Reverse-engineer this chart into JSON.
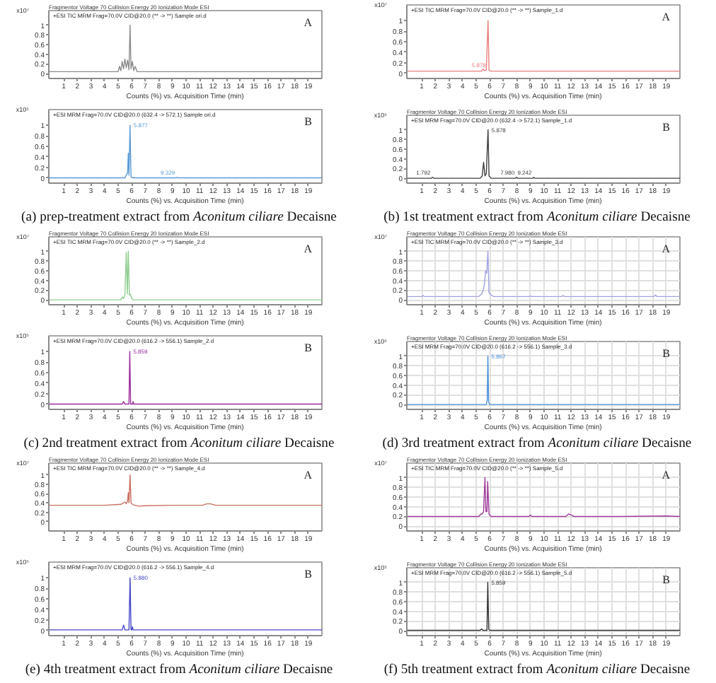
{
  "chart_data": [
    {
      "type": "line",
      "title": "+ESI TIC MRM Frag=70.0V CID@20.0 (** -> **) Sample ori.d",
      "subtitle": "Fragmentor Voltage 70 Collision Energy 20 Ionization Mode ESI",
      "xlabel": "Counts (%) vs. Acquisition Time (min)",
      "ylabel": "x10⁷",
      "color": "#8c8c8c",
      "x": [
        -0.1,
        5.0,
        5.1,
        5.2,
        5.3,
        5.4,
        5.5,
        5.6,
        5.7,
        5.8,
        5.88,
        5.95,
        6.05,
        6.15,
        6.25,
        6.4,
        20
      ],
      "values": [
        0.04,
        0.04,
        0.15,
        0.06,
        0.25,
        0.1,
        0.3,
        0.12,
        0.28,
        0.08,
        1.0,
        0.1,
        0.25,
        0.06,
        0.15,
        0.04,
        0.04
      ],
      "xlim": [
        -0.1,
        20
      ],
      "ylim": [
        -0.1,
        1.3
      ],
      "xticks": [
        1,
        2,
        3,
        4,
        5,
        6,
        7,
        8,
        9,
        10,
        11,
        12,
        13,
        14,
        15,
        16,
        17,
        18,
        19
      ],
      "yticks": [
        0,
        0.2,
        0.4,
        0.6,
        0.8,
        1
      ],
      "annotations": [
        "A"
      ]
    },
    {
      "type": "line",
      "title": "+ESI MRM Frag=70.0V CID@20.0 (632.4 -> 572.1) Sample ori.d",
      "xlabel": "Counts (%) vs. Acquisition Time (min)",
      "ylabel": "x10⁵",
      "color": "#5b9bd5",
      "x": [
        -0.1,
        5.5,
        5.6,
        5.7,
        5.75,
        5.8,
        5.877,
        5.95,
        6.05,
        9.25,
        9.329,
        9.4,
        20
      ],
      "values": [
        0,
        0,
        0.05,
        0.1,
        0.47,
        0.05,
        1.0,
        0.02,
        0,
        0,
        0.01,
        0,
        0
      ],
      "xlim": [
        -0.1,
        20
      ],
      "ylim": [
        -0.1,
        1.3
      ],
      "xticks": [
        1,
        2,
        3,
        4,
        5,
        6,
        7,
        8,
        9,
        10,
        11,
        12,
        13,
        14,
        15,
        16,
        17,
        18,
        19
      ],
      "yticks": [
        0,
        0.2,
        0.4,
        0.6,
        0.8,
        1
      ],
      "annotations": [
        "B",
        {
          "text": "5.877",
          "x": 5.877,
          "y": 1.0
        },
        {
          "text": "9.329",
          "x": 9.329,
          "y": 0.01
        },
        "(a) prep-treatment extract from",
        "Aconitum ciliare",
        "Decaisne"
      ]
    },
    {
      "type": "line",
      "title": "+ESI TIC MRM Frag=70.0V CID@20.0 (** -> **) Sample_1.d",
      "xlabel": "Counts (%) vs. Acquisition Time (min)",
      "ylabel": "x10⁷",
      "color": "#e88080",
      "x": [
        -0.1,
        5.4,
        5.5,
        5.6,
        5.75,
        5.878,
        5.95,
        6.1,
        20
      ],
      "values": [
        0.04,
        0.04,
        0.08,
        0.05,
        0.06,
        1.0,
        0.06,
        0.04,
        0.04
      ],
      "xlim": [
        -0.1,
        20
      ],
      "ylim": [
        -0.1,
        1.3
      ],
      "xticks": [
        1,
        2,
        3,
        4,
        5,
        6,
        7,
        8,
        9,
        10,
        11,
        12,
        13,
        14,
        15,
        16,
        17,
        18,
        19
      ],
      "yticks": [
        0,
        0.2,
        0.4,
        0.6,
        0.8,
        1
      ],
      "annotations": [
        "A",
        {
          "text": "5.878",
          "x": 5.878,
          "y": 0.06
        }
      ]
    },
    {
      "type": "line",
      "title": "+ESI MRM Frag=70.0V CID@20.0 (632.4 -> 572.1) Sample_1.d",
      "subtitle": "Fragmentor Voltage 70 Collision Energy 20 Ionization Mode ESI",
      "xlabel": "Counts (%) vs. Acquisition Time (min)",
      "ylabel": "x10⁵",
      "color": "#404040",
      "x": [
        -0.1,
        1.7,
        1.792,
        1.9,
        5.3,
        5.45,
        5.55,
        5.65,
        5.75,
        5.878,
        5.95,
        6.1,
        7.9,
        7.98,
        8.06,
        9.16,
        9.242,
        9.32,
        20
      ],
      "values": [
        0,
        0,
        0.02,
        0,
        0,
        0.05,
        0.33,
        0.05,
        0.1,
        1.0,
        0.05,
        0,
        0,
        0.02,
        0,
        0,
        0.02,
        0,
        0
      ],
      "xlim": [
        -0.1,
        20
      ],
      "ylim": [
        -0.1,
        1.3
      ],
      "xticks": [
        1,
        2,
        3,
        4,
        5,
        6,
        7,
        8,
        9,
        10,
        11,
        12,
        13,
        14,
        15,
        16,
        17,
        18,
        19
      ],
      "yticks": [
        0,
        0.2,
        0.4,
        0.6,
        0.8,
        1
      ],
      "annotations": [
        "B",
        {
          "text": "5.878",
          "x": 5.878,
          "y": 1.0
        },
        {
          "text": "1.792",
          "x": 1.792,
          "y": 0.02
        },
        {
          "text": "7.980",
          "x": 7.98,
          "y": 0.02
        },
        {
          "text": "9.242",
          "x": 9.242,
          "y": 0.02
        },
        "(b) 1st treatment extract from",
        "Aconitum ciliare",
        "Decaisne"
      ]
    },
    {
      "type": "line",
      "title": "+ESI TIC MRM Frag=70.0V CID@20.0 (** -> **) Sample_2.d",
      "subtitle": "Fragmentor Voltage 70 Collision Energy 20 Ionization Mode ESI",
      "xlabel": "Counts (%) vs. Acquisition Time (min)",
      "ylabel": "x10⁷",
      "color": "#8fce8f",
      "x": [
        -0.1,
        5.2,
        5.3,
        5.4,
        5.5,
        5.6,
        5.68,
        5.75,
        5.83,
        5.9,
        6.0,
        6.1,
        20
      ],
      "values": [
        0,
        0,
        0.06,
        0.03,
        0.1,
        0.98,
        0.12,
        1.0,
        0.1,
        0.12,
        0.03,
        0,
        0
      ],
      "xlim": [
        -0.1,
        20
      ],
      "ylim": [
        -0.1,
        1.3
      ],
      "xticks": [
        1,
        2,
        3,
        4,
        5,
        6,
        7,
        8,
        9,
        10,
        11,
        12,
        13,
        14,
        15,
        16,
        17,
        18,
        19
      ],
      "yticks": [
        0,
        0.2,
        0.4,
        0.6,
        0.8,
        1
      ],
      "annotations": [
        "A"
      ]
    },
    {
      "type": "line",
      "title": "+ESI MRM Frag=70.0V CID@20.0 (616.2 -> 556.1) Sample_2.d",
      "xlabel": "Counts (%) vs. Acquisition Time (min)",
      "ylabel": "x10⁵",
      "color": "#9b2d9b",
      "x": [
        -0.1,
        5.3,
        5.4,
        5.5,
        5.8,
        5.859,
        5.92,
        6.05,
        6.1,
        6.15,
        20
      ],
      "values": [
        0,
        0,
        0.05,
        0,
        0,
        1.0,
        0,
        0,
        0.05,
        0,
        0
      ],
      "xlim": [
        -0.1,
        20
      ],
      "ylim": [
        -0.1,
        1.3
      ],
      "xticks": [
        1,
        2,
        3,
        4,
        5,
        6,
        7,
        8,
        9,
        10,
        11,
        12,
        13,
        14,
        15,
        16,
        17,
        18,
        19
      ],
      "yticks": [
        0,
        0.2,
        0.4,
        0.6,
        0.8,
        1
      ],
      "annotations": [
        "B",
        {
          "text": "5.859",
          "x": 5.859,
          "y": 1.0
        },
        "(c) 2nd treatment extract from",
        "Aconitum ciliare",
        "Decaisne"
      ]
    },
    {
      "type": "line",
      "title": "+ESI TIC MRM Frag=70.0V CID@20.0 (** -> **) Sample_3.d",
      "subtitle": "Fragmentor Voltage 70 Collision Energy 20 Ionization Mode ESI",
      "xlabel": "Counts (%) vs. Acquisition Time (min)",
      "ylabel": "x10⁷",
      "color": "#a0a0e0",
      "grid": true,
      "x": [
        -0.1,
        1.0,
        1.1,
        1.2,
        5.2,
        5.4,
        5.5,
        5.6,
        5.7,
        5.78,
        5.87,
        5.95,
        6.1,
        6.3,
        8.9,
        9.0,
        9.1,
        11.3,
        11.4,
        11.5,
        18.1,
        18.2,
        18.3,
        20
      ],
      "values": [
        0.07,
        0.07,
        0.09,
        0.07,
        0.07,
        0.12,
        0.18,
        0.3,
        0.6,
        0.55,
        1.0,
        0.15,
        0.1,
        0.07,
        0.07,
        0.08,
        0.07,
        0.07,
        0.09,
        0.07,
        0.07,
        0.1,
        0.07,
        0.07
      ],
      "xlim": [
        -0.1,
        20
      ],
      "ylim": [
        -0.1,
        1.3
      ],
      "xticks": [
        1,
        2,
        3,
        4,
        5,
        6,
        7,
        8,
        9,
        10,
        11,
        12,
        13,
        14,
        15,
        16,
        17,
        18,
        19
      ],
      "yticks": [
        0,
        0.2,
        0.4,
        0.6,
        0.8,
        1
      ],
      "annotations": [
        "A"
      ]
    },
    {
      "type": "line",
      "title": "+ESI MRM Frag=70.0V CID@20.0 (616.2 -> 556.1) Sample_3.d",
      "subtitle": "Fragmentor Voltage 70 Collision Energy 20 Ionization Mode ESI",
      "xlabel": "Counts (%) vs. Acquisition Time (min)",
      "ylabel": "x10⁵",
      "color": "#4a8fd9",
      "grid": true,
      "x": [
        -0.1,
        5.75,
        5.82,
        5.867,
        5.92,
        6.0,
        20
      ],
      "values": [
        0,
        0,
        0.1,
        1.0,
        0.05,
        0,
        0
      ],
      "xlim": [
        -0.1,
        20
      ],
      "ylim": [
        -0.1,
        1.3
      ],
      "xticks": [
        1,
        2,
        3,
        4,
        5,
        6,
        7,
        8,
        9,
        10,
        11,
        12,
        13,
        14,
        15,
        16,
        17,
        18,
        19
      ],
      "yticks": [
        0,
        0.2,
        0.4,
        0.6,
        0.8,
        1
      ],
      "annotations": [
        "B",
        {
          "text": "5.867",
          "x": 5.867,
          "y": 1.0
        },
        "(d) 3rd treatment extract from",
        "Aconitum ciliare",
        "Decaisne"
      ]
    },
    {
      "type": "line",
      "title": "+ESI TIC MRM Frag=70.0V CID@20.0 (** -> **) Sample_4.d",
      "subtitle": "Fragmentor Voltage 70 Collision Energy 20 Ionization Mode ESI",
      "xlabel": "Counts (%) vs. Acquisition Time (min)",
      "ylabel": "x10⁷",
      "color": "#c87060",
      "x": [
        -0.1,
        2,
        4,
        5.2,
        5.4,
        5.5,
        5.6,
        5.7,
        5.75,
        5.8,
        5.88,
        5.95,
        6.1,
        6.5,
        7,
        9,
        11.2,
        11.5,
        11.8,
        12.2,
        15,
        20
      ],
      "values": [
        0.35,
        0.35,
        0.35,
        0.37,
        0.4,
        0.42,
        0.38,
        0.45,
        0.62,
        0.4,
        1.0,
        0.4,
        0.36,
        0.33,
        0.34,
        0.35,
        0.35,
        0.38,
        0.38,
        0.35,
        0.35,
        0.35
      ],
      "xlim": [
        -0.1,
        20
      ],
      "ylim": [
        -0.2,
        1.25
      ],
      "xticks": [
        1,
        2,
        3,
        4,
        5,
        6,
        7,
        8,
        9,
        10,
        11,
        12,
        13,
        14,
        15,
        16,
        17,
        18,
        19
      ],
      "yticks": [
        0,
        0.2,
        0.4,
        0.6,
        0.8,
        1
      ],
      "annotations": [
        "A"
      ]
    },
    {
      "type": "line",
      "title": "+ESI MRM Frag=70.0V CID@20.0 (616.2 -> 556.1) Sample_4.d",
      "xlabel": "Counts (%) vs. Acquisition Time (min)",
      "ylabel": "x10⁵",
      "color": "#4646c8",
      "x": [
        -0.1,
        5.3,
        5.4,
        5.5,
        5.8,
        5.88,
        5.95,
        6.0,
        6.05,
        6.1,
        20
      ],
      "values": [
        0.01,
        0.01,
        0.1,
        0.01,
        0.01,
        1.0,
        0.01,
        0.01,
        0.07,
        0.01,
        0.01
      ],
      "xlim": [
        -0.1,
        20
      ],
      "ylim": [
        -0.1,
        1.3
      ],
      "xticks": [
        1,
        2,
        3,
        4,
        5,
        6,
        7,
        8,
        9,
        10,
        11,
        12,
        13,
        14,
        15,
        16,
        17,
        18,
        19
      ],
      "yticks": [
        0,
        0.2,
        0.4,
        0.6,
        0.8,
        1
      ],
      "annotations": [
        "B",
        {
          "text": "5.880",
          "x": 5.88,
          "y": 1.0
        },
        "(e) 4th treatment extract from",
        "Aconitum ciliare",
        "Decaisne"
      ]
    },
    {
      "type": "line",
      "title": "+ESI TIC MRM Frag=70.0V CID@20.0 (** -> **) Sample_5.d",
      "subtitle": "Fragmentor Voltage 70 Collision Energy 20 Ionization Mode ESI",
      "xlabel": "Counts (%) vs. Acquisition Time (min)",
      "ylabel": "x10⁷",
      "color": "#a03c9b",
      "grid": true,
      "x": [
        -0.1,
        2,
        4,
        5.2,
        5.35,
        5.45,
        5.55,
        5.65,
        5.72,
        5.8,
        5.85,
        5.95,
        6.1,
        7.5,
        8.9,
        9.0,
        9.1,
        11.6,
        11.8,
        12.0,
        12.2,
        15.5,
        19,
        20
      ],
      "values": [
        0.2,
        0.2,
        0.2,
        0.2,
        0.25,
        0.25,
        0.3,
        1.0,
        0.3,
        0.3,
        0.92,
        0.25,
        0.2,
        0.2,
        0.2,
        0.23,
        0.2,
        0.2,
        0.25,
        0.23,
        0.2,
        0.2,
        0.21,
        0.2
      ],
      "xlim": [
        -0.1,
        20
      ],
      "ylim": [
        -0.1,
        1.3
      ],
      "xticks": [
        1,
        2,
        3,
        4,
        5,
        6,
        7,
        8,
        9,
        10,
        11,
        12,
        13,
        14,
        15,
        16,
        17,
        18,
        19
      ],
      "yticks": [
        0,
        0.2,
        0.4,
        0.6,
        0.8,
        1
      ],
      "annotations": [
        "A"
      ]
    },
    {
      "type": "line",
      "title": "+ESI MRM Frag=70.0V CID@20.0 (616.2 -> 556.1) Sample_5.d",
      "subtitle": "Fragmentor Voltage 70 Collision Energy 20 Ionization Mode ESI",
      "xlabel": "Counts (%) vs. Acquisition Time (min)",
      "ylabel": "x10⁵",
      "color": "#333333",
      "grid": true,
      "x": [
        -0.1,
        5.3,
        5.4,
        5.5,
        5.8,
        5.859,
        5.93,
        6.0,
        20
      ],
      "values": [
        0.01,
        0.01,
        0.04,
        0.01,
        0.01,
        1.0,
        0.03,
        0.01,
        0.01
      ],
      "xlim": [
        -0.1,
        20
      ],
      "ylim": [
        -0.1,
        1.3
      ],
      "xticks": [
        1,
        2,
        3,
        4,
        5,
        6,
        7,
        8,
        9,
        10,
        11,
        12,
        13,
        14,
        15,
        16,
        17,
        18,
        19
      ],
      "yticks": [
        0,
        0.2,
        0.4,
        0.6,
        0.8,
        1
      ],
      "annotations": [
        "B",
        {
          "text": "5.859",
          "x": 5.859,
          "y": 1.0
        },
        "(f) 5th treatment extract from",
        "Aconitum ciliare",
        "Decaisne"
      ]
    }
  ]
}
